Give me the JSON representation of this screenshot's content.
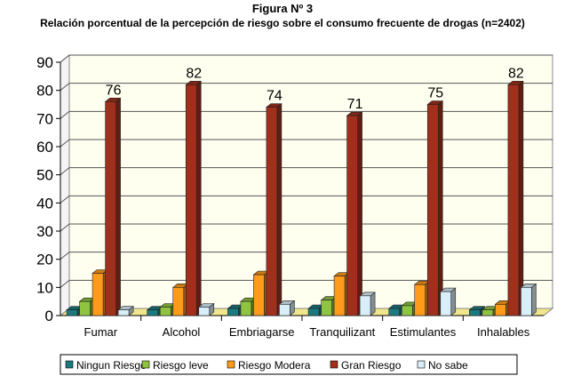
{
  "chart_data": {
    "type": "bar",
    "title": "Figura Nº 3",
    "subtitle": "Relación porcentual de la percepción de riesgo sobre el consumo frecuente de drogas (n=2402)",
    "xlabel": "",
    "ylabel": "",
    "ylim": [
      0,
      90
    ],
    "yticks": [
      "0",
      "10",
      "20",
      "30",
      "40",
      "50",
      "60",
      "70",
      "80",
      "90"
    ],
    "categories": [
      "Fumar",
      "Alcohol",
      "Embriagarse",
      "Tranquilizant",
      "Estimulantes",
      "Inhalables"
    ],
    "series": [
      {
        "name": "Ningun Riesgo",
        "color": "#1a7a80",
        "values": [
          2,
          2,
          2.5,
          2.5,
          2.5,
          2
        ]
      },
      {
        "name": "Riesgo leve",
        "color": "#8fc440",
        "values": [
          5,
          3,
          5,
          5.5,
          3.5,
          2
        ]
      },
      {
        "name": "Riesgo Modera",
        "color": "#ff9a1a",
        "values": [
          15,
          10,
          14.5,
          14,
          11,
          4
        ]
      },
      {
        "name": "Gran Riesgo",
        "color": "#a0301c",
        "values": [
          76,
          82,
          74,
          71,
          75,
          82
        ]
      },
      {
        "name": "No sabe",
        "color": "#d8eef8",
        "values": [
          2,
          3,
          4,
          7,
          8.5,
          10
        ]
      }
    ],
    "data_labels": [
      "76",
      "82",
      "74",
      "71",
      "75",
      "82"
    ],
    "legend": "bottom",
    "grid": true
  }
}
